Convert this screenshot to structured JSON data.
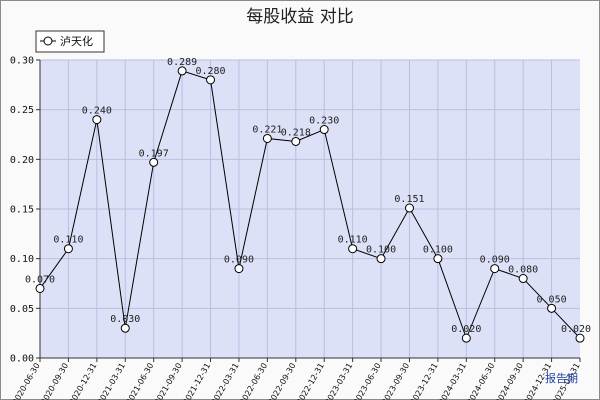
{
  "chart_data": {
    "type": "line",
    "title": "每股收益 对比",
    "xlabel": "",
    "ylabel": "",
    "ylim": [
      0,
      0.3
    ],
    "yticks": [
      "0.00",
      "0.05",
      "0.10",
      "0.15",
      "0.20",
      "0.25",
      "0.30"
    ],
    "grid": true,
    "legend_position": "top-left",
    "x_axis_caption": "报告期",
    "categories": [
      "2020-06-30",
      "2020-09-30",
      "2020-12-31",
      "2021-03-31",
      "2021-06-30",
      "2021-09-30",
      "2021-12-31",
      "2022-03-31",
      "2022-06-30",
      "2022-09-30",
      "2022-12-31",
      "2023-03-31",
      "2023-06-30",
      "2023-09-30",
      "2023-12-31",
      "2024-03-31",
      "2024-06-30",
      "2024-09-30",
      "2024-12-31",
      "2025-03-31"
    ],
    "series": [
      {
        "name": "泸天化",
        "values": [
          0.07,
          0.11,
          0.24,
          0.03,
          0.197,
          0.289,
          0.28,
          0.09,
          0.221,
          0.218,
          0.23,
          0.11,
          0.1,
          0.151,
          0.1,
          0.02,
          0.09,
          0.08,
          0.05,
          0.02
        ],
        "labels": [
          "0.070",
          "0.110",
          "0.240",
          "0.030",
          "0.197",
          "0.289",
          "0.280",
          "0.090",
          "0.221",
          "0.218",
          "0.230",
          "0.110",
          "0.100",
          "0.151",
          "0.100",
          "0.020",
          "0.090",
          "0.080",
          "0.050",
          "0.020"
        ]
      }
    ],
    "colors": {
      "plot_bg": "#dde1f7",
      "grid": "#b8bfe2",
      "line": "#000000"
    }
  }
}
